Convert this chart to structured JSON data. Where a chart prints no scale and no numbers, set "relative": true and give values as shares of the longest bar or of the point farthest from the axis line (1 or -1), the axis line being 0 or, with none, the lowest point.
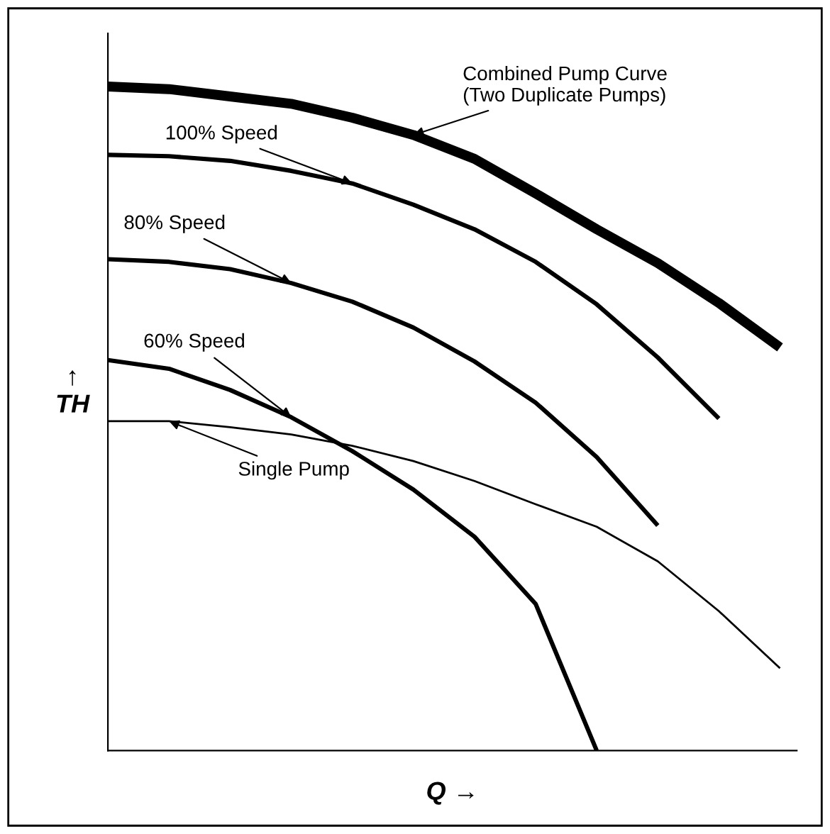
{
  "chart_data": {
    "type": "line",
    "relative": true,
    "xlabel": "Q →",
    "ylabel": "↑\nTH",
    "legend": false,
    "marker": "none",
    "line_style": "solid",
    "categories": [
      null,
      null,
      null,
      null,
      null,
      null,
      null,
      null,
      null,
      null,
      null,
      null
    ],
    "series": [
      {
        "color": "#000000",
        "values": [
          1.0,
          0.996,
          0.985,
          0.974,
          0.953,
          0.927,
          0.891,
          0.839,
          0.785,
          0.734,
          0.674,
          0.607
        ]
      },
      {
        "color": "#000000",
        "values": [
          0.897,
          0.895,
          0.888,
          0.873,
          0.854,
          0.822,
          0.785,
          0.736,
          0.672,
          0.592,
          0.5,
          null
        ]
      },
      {
        "color": "#000000",
        "values": [
          0.74,
          0.736,
          0.725,
          0.704,
          0.676,
          0.637,
          0.586,
          0.524,
          0.442,
          0.339,
          null,
          null
        ]
      },
      {
        "color": "#000000",
        "values": [
          0.588,
          0.575,
          0.543,
          0.502,
          0.451,
          0.393,
          0.322,
          0.221,
          0.0,
          null,
          null,
          null
        ]
      },
      {
        "color": "#000000",
        "values": [
          0.496,
          0.496,
          0.487,
          0.476,
          0.459,
          0.436,
          0.406,
          0.371,
          0.337,
          0.285,
          0.21,
          0.124
        ]
      }
    ],
    "annotations": [
      "Combined Pump Curve\n(Two Duplicate Pumps)",
      "100% Speed",
      "80% Speed",
      "60% Speed",
      "Single Pump"
    ]
  }
}
